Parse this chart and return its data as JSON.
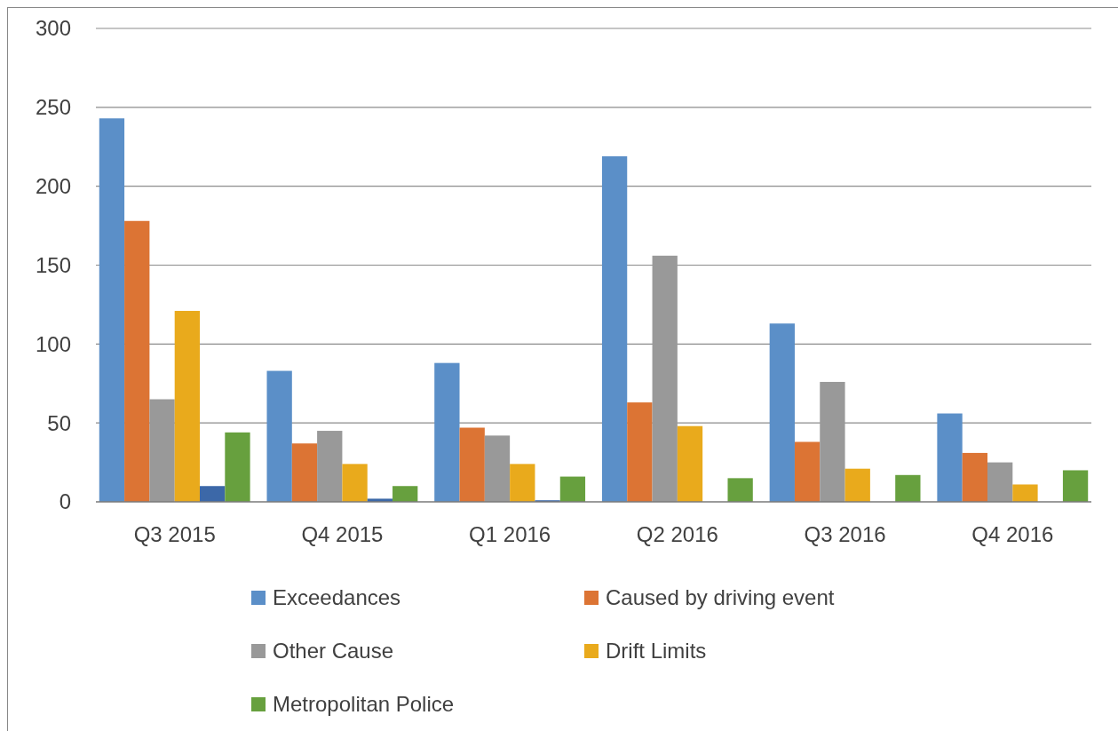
{
  "chart_data": {
    "type": "bar",
    "categories": [
      "Q3 2015",
      "Q4 2015",
      "Q1 2016",
      "Q2 2016",
      "Q3 2016",
      "Q4 2016"
    ],
    "series": [
      {
        "name": "Exceedances",
        "color": "#5b8fc8",
        "values": [
          243,
          83,
          88,
          219,
          113,
          56
        ]
      },
      {
        "name": "Caused by driving event",
        "color": "#dc7434",
        "values": [
          178,
          37,
          47,
          63,
          38,
          31
        ]
      },
      {
        "name": "Other Cause",
        "color": "#999999",
        "values": [
          65,
          45,
          42,
          156,
          76,
          25
        ]
      },
      {
        "name": "Drift Limits",
        "color": "#e9aa1c",
        "values": [
          121,
          24,
          24,
          48,
          21,
          11
        ]
      },
      {
        "color": "#3c68a8",
        "values": [
          10,
          2,
          1,
          0,
          0,
          0
        ]
      },
      {
        "name": "Metropolitan Police",
        "color": "#67a03e",
        "values": [
          44,
          10,
          16,
          15,
          17,
          20
        ]
      }
    ],
    "ylim": [
      0,
      300
    ],
    "yticks": [
      0,
      50,
      100,
      150,
      200,
      250,
      300
    ],
    "grid": "y",
    "legend": "bottom"
  }
}
